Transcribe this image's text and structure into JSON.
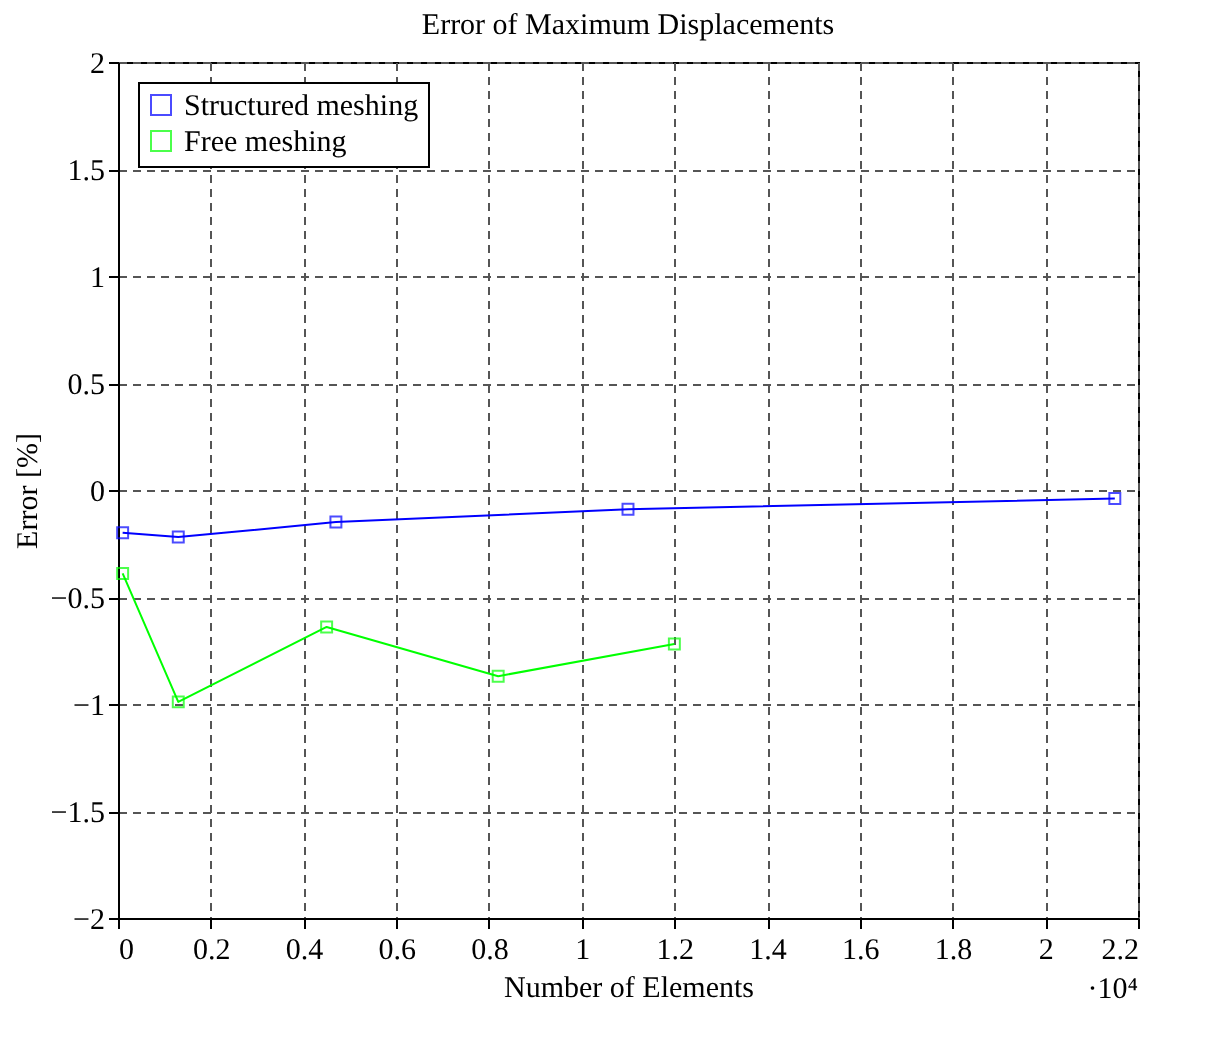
{
  "chart_data": {
    "type": "line",
    "title": "Error of Maximum Displacements",
    "xlabel": "Number of Elements",
    "ylabel": "Error [%]",
    "annotations": [
      "·10⁴"
    ],
    "series": [
      {
        "name": "Structured meshing",
        "color": "#0000ff",
        "x": [
          0.01,
          0.13,
          0.47,
          1.1,
          2.15
        ],
        "values": [
          -0.2,
          -0.22,
          -0.15,
          -0.09,
          -0.04
        ]
      },
      {
        "name": "Free meshing",
        "color": "#00ff00",
        "x": [
          0.01,
          0.13,
          0.45,
          0.82,
          1.2
        ],
        "values": [
          -0.39,
          -0.99,
          -0.64,
          -0.87,
          -0.72
        ]
      }
    ],
    "xlim": [
      0,
      2.2
    ],
    "xticks": [
      0,
      0.2,
      0.4,
      0.6,
      0.8,
      1,
      1.2,
      1.4,
      1.6,
      1.8,
      2,
      2.2
    ],
    "ylim": [
      -2,
      2
    ],
    "yticks": [
      -2,
      -1.5,
      -1,
      -0.5,
      0,
      0.5,
      1,
      1.5,
      2
    ],
    "grid": true,
    "legend": "top left",
    "marker": "square",
    "line_style": "solid"
  }
}
